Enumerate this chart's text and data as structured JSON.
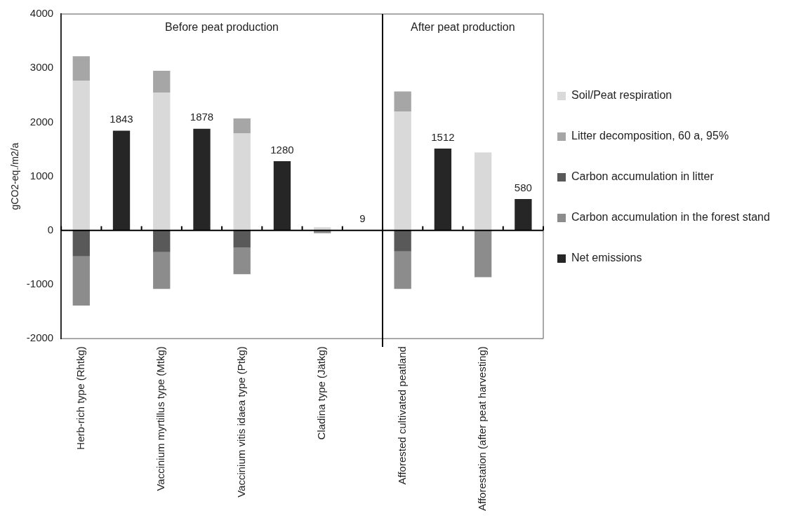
{
  "chart_data": {
    "type": "bar",
    "stacked": true,
    "ylabel": "gCO2-eq./m2/a",
    "categories": [
      "Herb-rich type (Rhtkg)",
      null,
      "Vaccinium myrtillus type (Mtkg)",
      null,
      "Vaccinium vitis idaea type (Ptkg)",
      null,
      "Cladina type (Jätkg)",
      null,
      "Afforested cultivated peatland",
      null,
      "Afforestation (after peat harvesting)",
      null
    ],
    "series": [
      {
        "name": "Soil/Peat respiration",
        "color": "#d9d9d9",
        "values": [
          2770,
          null,
          2550,
          null,
          1790,
          null,
          60,
          null,
          2200,
          null,
          1440,
          null
        ]
      },
      {
        "name": "Litter decomposition, 60 a, 95%",
        "color": "#a6a6a6",
        "values": [
          450,
          null,
          400,
          null,
          280,
          null,
          null,
          null,
          370,
          null,
          null,
          null
        ]
      },
      {
        "name": "Carbon accumulation in litter",
        "color": "#595959",
        "values": [
          -480,
          null,
          -400,
          null,
          -320,
          null,
          null,
          null,
          -390,
          null,
          null,
          null
        ]
      },
      {
        "name": "Carbon accumulation in the forest stand",
        "color": "#8c8c8c",
        "values": [
          -910,
          null,
          -680,
          null,
          -490,
          null,
          -50,
          null,
          -690,
          null,
          -865,
          null
        ]
      },
      {
        "name": "Net emissions",
        "color": "#262626",
        "values": [
          null,
          1843,
          null,
          1878,
          null,
          1280,
          null,
          9,
          null,
          1512,
          null,
          580
        ],
        "value_labels": [
          null,
          "1843",
          null,
          "1878",
          null,
          "1280",
          null,
          "9",
          null,
          "1512",
          null,
          "580"
        ]
      }
    ],
    "ylim": [
      -2000,
      4000
    ],
    "yticks": [
      -2000,
      -1000,
      0,
      1000,
      2000,
      3000,
      4000
    ],
    "legend": "right",
    "annotations": [
      "Before peat production",
      "After peat production"
    ]
  }
}
